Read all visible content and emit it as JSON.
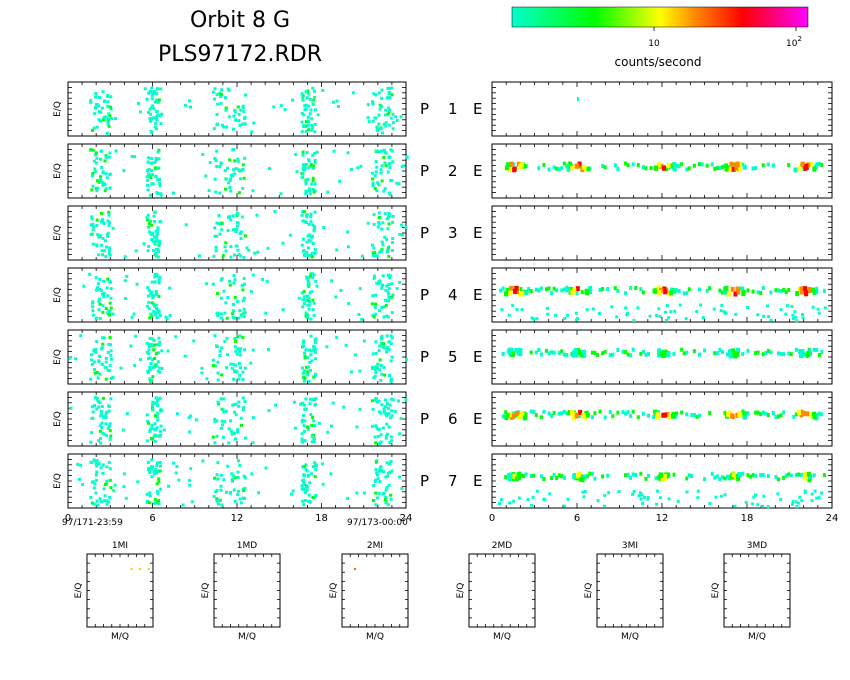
{
  "header": {
    "title_line1": "Orbit 8 G",
    "title_line2": "PLS97172.RDR"
  },
  "colorbar": {
    "label": "counts/second",
    "tick_10": "10",
    "tick_100_base": "10",
    "tick_100_exp": "2",
    "colors": [
      "#00ffcc",
      "#00ff00",
      "#ffff00",
      "#ff8800",
      "#ff0000",
      "#ff00ff"
    ]
  },
  "panels": {
    "ylabel": "E/Q",
    "rows": [
      {
        "p": "P",
        "n": "1",
        "e": "E"
      },
      {
        "p": "P",
        "n": "2",
        "e": "E"
      },
      {
        "p": "P",
        "n": "3",
        "e": "E"
      },
      {
        "p": "P",
        "n": "4",
        "e": "E"
      },
      {
        "p": "P",
        "n": "5",
        "e": "E"
      },
      {
        "p": "P",
        "n": "6",
        "e": "E"
      },
      {
        "p": "P",
        "n": "7",
        "e": "E"
      }
    ],
    "xticks": [
      "0",
      "6",
      "12",
      "18",
      "24"
    ],
    "time_start": "97/171-23:59",
    "time_end": "97/173-00:00"
  },
  "chart_data": {
    "type": "heatmap",
    "xlim": [
      0,
      24
    ],
    "xticks": [
      0,
      6,
      12,
      18,
      24
    ],
    "left_activity_bands_hours": [
      [
        1.5,
        3.0
      ],
      [
        5.5,
        6.5
      ],
      [
        10.2,
        12.5
      ],
      [
        16.5,
        17.5
      ],
      [
        21.5,
        23.0
      ]
    ],
    "right_hotspots_hours": [
      1.5,
      6.0,
      12.0,
      17.0,
      22.0
    ],
    "right_row_peak_level": [
      0,
      5,
      0,
      5,
      2,
      5,
      3
    ]
  },
  "mass_panels": {
    "ylabel": "E/Q",
    "xlabel": "M/Q",
    "items": [
      {
        "title": "1MI"
      },
      {
        "title": "1MD"
      },
      {
        "title": "2MI"
      },
      {
        "title": "2MD"
      },
      {
        "title": "3MI"
      },
      {
        "title": "3MD"
      }
    ]
  }
}
